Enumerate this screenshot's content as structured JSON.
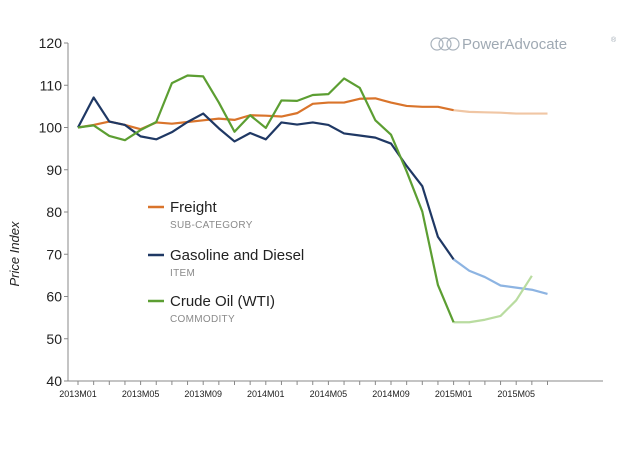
{
  "logo": {
    "name": "PowerAdvocate",
    "mark": "®",
    "icon": "poweradvocate-logo-icon"
  },
  "chart_data": {
    "type": "line",
    "title": "",
    "xlabel": "",
    "ylabel": "Price Index",
    "ylim": [
      40,
      120
    ],
    "yticks": [
      40,
      50,
      60,
      70,
      80,
      90,
      100,
      110,
      120
    ],
    "x": [
      "2013M01",
      "2013M02",
      "2013M03",
      "2013M04",
      "2013M05",
      "2013M06",
      "2013M07",
      "2013M08",
      "2013M09",
      "2013M10",
      "2013M11",
      "2013M12",
      "2014M01",
      "2014M02",
      "2014M03",
      "2014M04",
      "2014M05",
      "2014M06",
      "2014M07",
      "2014M08",
      "2014M09",
      "2014M10",
      "2014M11",
      "2014M12",
      "2015M01",
      "2015M02",
      "2015M03",
      "2015M04",
      "2015M05",
      "2015M06",
      "2015M07"
    ],
    "xtick_labels": [
      "2013M01",
      "2013M05",
      "2013M09",
      "2014M01",
      "2014M05",
      "2014M09",
      "2015M01",
      "2015M05"
    ],
    "xtick_positions": [
      "2013M01",
      "2013M05",
      "2013M09",
      "2014M01",
      "2014M05",
      "2014M09",
      "2015M01",
      "2015M05"
    ],
    "forecast_start": "2015M02",
    "grid": false,
    "legend_position": "center-left",
    "series": [
      {
        "name": "Freight",
        "category": "SUB-CATEGORY",
        "color": "#d9742b",
        "forecast_color": "#f0c6a4",
        "values": [
          100,
          100.6,
          101.4,
          100.6,
          99.6,
          101.2,
          100.9,
          101.3,
          101.7,
          102.1,
          101.8,
          102.9,
          102.8,
          102.6,
          103.4,
          105.6,
          105.9,
          105.9,
          106.8,
          106.9,
          105.9,
          105.1,
          104.9,
          104.9,
          104.1,
          103.7,
          103.6,
          103.5,
          103.3,
          103.3,
          103.3
        ]
      },
      {
        "name": "Gasoline and Diesel",
        "category": "ITEM",
        "color": "#1f3864",
        "forecast_color": "#8db4e2",
        "values": [
          100,
          107.1,
          101.4,
          100.6,
          97.9,
          97.2,
          98.9,
          101.3,
          103.3,
          99.8,
          96.7,
          98.7,
          97.2,
          101.2,
          100.7,
          101.2,
          100.6,
          98.6,
          98.1,
          97.6,
          96.2,
          90.9,
          86.1,
          74.1,
          68.8,
          66.1,
          64.6,
          62.6,
          62.1,
          61.6,
          60.6
        ]
      },
      {
        "name": "Crude Oil (WTI)",
        "category": "COMMODITY",
        "color": "#5c9e32",
        "forecast_color": "#b9dca0",
        "values": [
          100,
          100.5,
          98.0,
          97.0,
          99.4,
          101.3,
          110.5,
          112.3,
          112.1,
          105.9,
          99.0,
          102.9,
          99.9,
          106.4,
          106.3,
          107.7,
          107.9,
          111.6,
          109.4,
          101.7,
          98.3,
          89.6,
          80.1,
          62.7,
          53.9,
          53.9,
          54.5,
          55.4,
          59.1,
          64.9,
          null
        ]
      }
    ]
  }
}
